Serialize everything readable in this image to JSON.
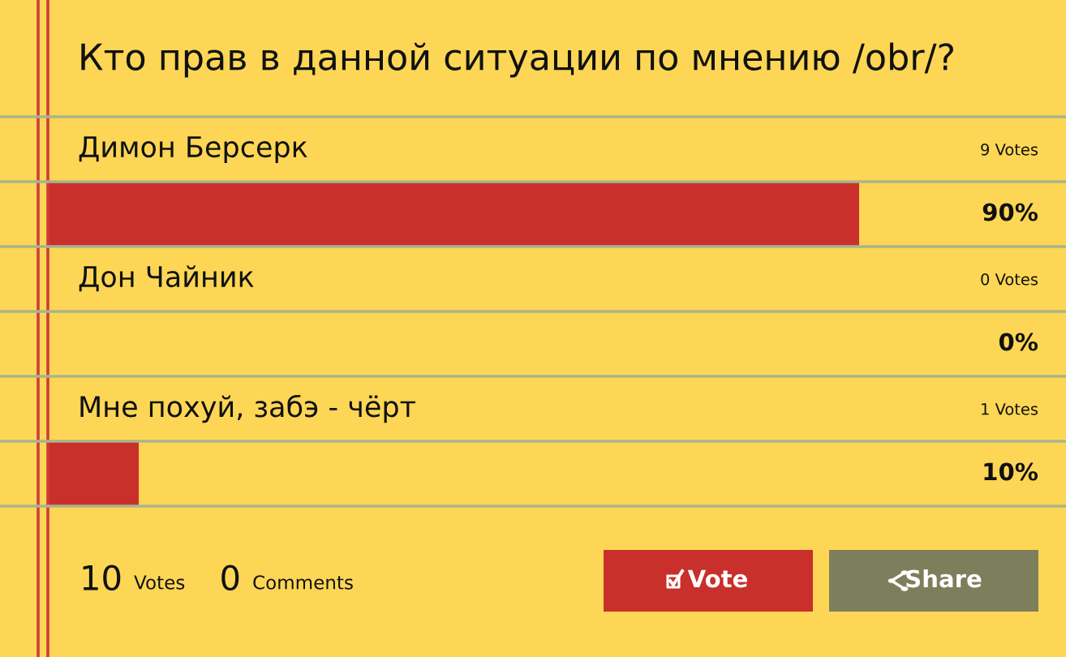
{
  "chart_data": {
    "type": "bar",
    "orientation": "horizontal",
    "title": "Кто прав в данной ситуации по мнению /obr/?",
    "categories": [
      "Димон Берсерк",
      "Дон Чайник",
      "Мне похуй, забэ - чёрт"
    ],
    "values": [
      90,
      0,
      10
    ],
    "color": "#c9302c",
    "value_labels": [
      "90%",
      "0%",
      "10%"
    ],
    "tick_labels": false,
    "annotations": [
      "9 Votes",
      "0 Votes",
      "1 Votes",
      "10",
      "Votes",
      "0",
      "Comments",
      "Vote",
      "Share"
    ]
  }
}
